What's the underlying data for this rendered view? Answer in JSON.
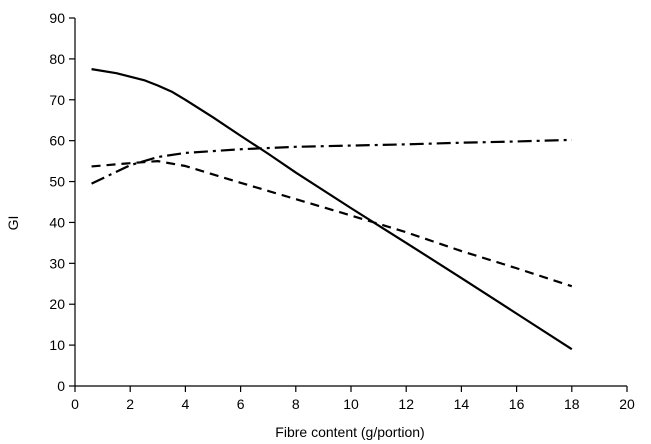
{
  "chart_data": {
    "type": "line",
    "xlabel": "Fibre content (g/portion)",
    "ylabel": "GI",
    "xlim": [
      0,
      20
    ],
    "ylim": [
      0,
      90
    ],
    "xticks": [
      0,
      2,
      4,
      6,
      8,
      10,
      12,
      14,
      16,
      18,
      20
    ],
    "yticks": [
      0,
      10,
      20,
      30,
      40,
      50,
      60,
      70,
      80,
      90
    ],
    "grid": false,
    "legend": "none",
    "series": [
      {
        "style": "solid",
        "color": "#000000",
        "x": [
          0.6,
          1.5,
          2.5,
          3.0,
          3.5,
          4.0,
          5.0,
          6.0,
          7.0,
          8.0,
          10.0,
          12.0,
          14.0,
          16.0,
          18.0
        ],
        "y": [
          77.5,
          76.5,
          74.8,
          73.5,
          72.0,
          70.0,
          65.7,
          61.2,
          56.8,
          52.2,
          43.5,
          35.0,
          26.4,
          17.7,
          9.0
        ]
      },
      {
        "style": "dashed",
        "color": "#000000",
        "x": [
          0.6,
          2.0,
          3.0,
          4.0,
          6.0,
          8.0,
          10.0,
          12.0,
          14.0,
          16.0,
          18.0
        ],
        "y": [
          53.7,
          54.5,
          55.0,
          53.8,
          49.7,
          45.7,
          41.7,
          37.6,
          33.0,
          28.8,
          24.4
        ]
      },
      {
        "style": "dash-dot",
        "color": "#000000",
        "x": [
          0.6,
          2.0,
          3.0,
          4.0,
          6.0,
          8.0,
          10.0,
          12.0,
          14.0,
          16.0,
          18.0
        ],
        "y": [
          49.5,
          54.0,
          56.0,
          57.0,
          57.9,
          58.5,
          58.8,
          59.1,
          59.5,
          59.8,
          60.2
        ]
      }
    ]
  }
}
